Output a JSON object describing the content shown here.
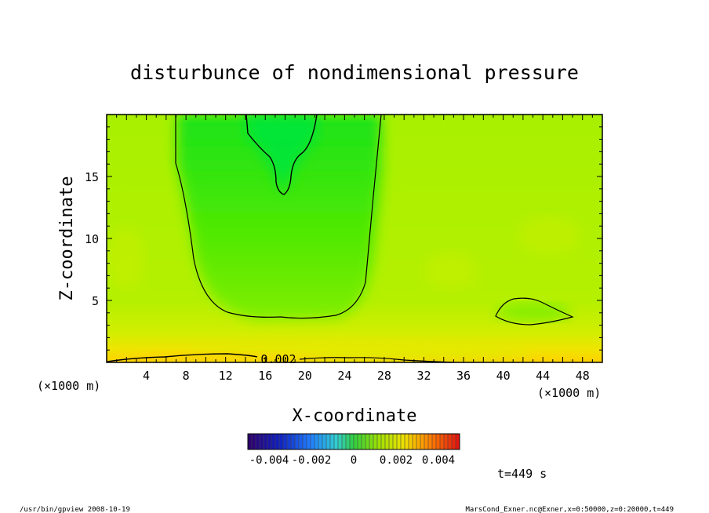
{
  "chart_data": {
    "type": "heatmap",
    "title": "disturbunce of nondimensional pressure",
    "xlabel": "X-coordinate",
    "ylabel": "Z-coordinate",
    "x_unit_left": "(×1000 m)",
    "x_unit_right": "(×1000 m)",
    "xlim": [
      0,
      50
    ],
    "ylim": [
      0,
      20
    ],
    "x_ticks": [
      "4",
      "8",
      "12",
      "16",
      "20",
      "24",
      "28",
      "32",
      "36",
      "40",
      "44",
      "48"
    ],
    "x_tick_values": [
      4,
      8,
      12,
      16,
      20,
      24,
      28,
      32,
      36,
      40,
      44,
      48
    ],
    "y_ticks": [
      "5",
      "10",
      "15"
    ],
    "y_tick_values": [
      5,
      10,
      15
    ],
    "contour_label": "0.002",
    "colorbar": {
      "range": [
        -0.005,
        0.005
      ],
      "tick_labels": [
        "-0.004",
        "-0.002",
        "0",
        "0.002",
        "0.004"
      ],
      "tick_values": [
        -0.004,
        -0.002,
        0,
        0.002,
        0.004
      ]
    },
    "time_label": "t=449 s",
    "colors": {
      "low": "#00e000",
      "mid": "#9cf200",
      "high": "#ffd800"
    }
  },
  "footer": {
    "left": "/usr/bin/gpview   2008-10-19",
    "right": "MarsCond_Exner.nc@Exner,x=0:50000,z=0:20000,t=449"
  }
}
